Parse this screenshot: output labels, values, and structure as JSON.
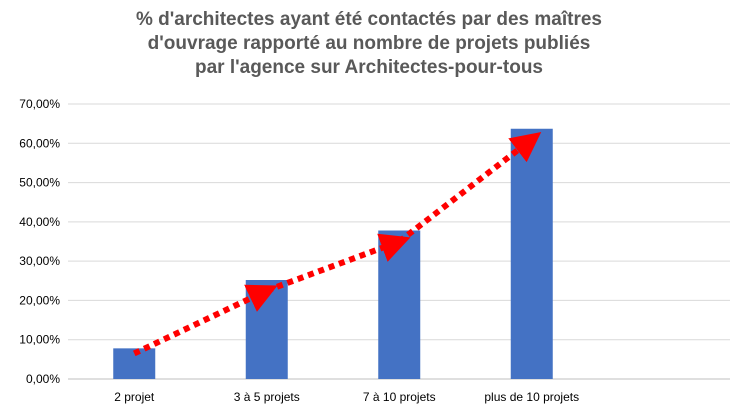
{
  "chart_data": {
    "type": "bar",
    "title": "% d'architectes ayant été contactés par des maîtres\nd'ouvrage rapporté au nombre de projets publiés\npar l'agence sur Architectes-pour-tous",
    "categories": [
      "2 projet",
      "3 à 5 projets",
      "7 à 10 projets",
      "plus de 10 projets"
    ],
    "values": [
      7.8,
      25.2,
      37.8,
      63.7
    ],
    "ylim": [
      0,
      70
    ],
    "ytick_step": 10,
    "ytick_labels": [
      "0,00%",
      "10,00%",
      "20,00%",
      "30,00%",
      "40,00%",
      "50,00%",
      "60,00%",
      "70,00%"
    ],
    "grid": true,
    "xlabel": "",
    "ylabel": "",
    "bar_color": "#4472C4",
    "trend_arrow": {
      "style": "dotted",
      "color": "#FF0000",
      "points": [
        [
          0,
          6.5
        ],
        [
          1,
          22.5
        ],
        [
          2,
          35
        ],
        [
          3,
          61
        ]
      ]
    }
  }
}
